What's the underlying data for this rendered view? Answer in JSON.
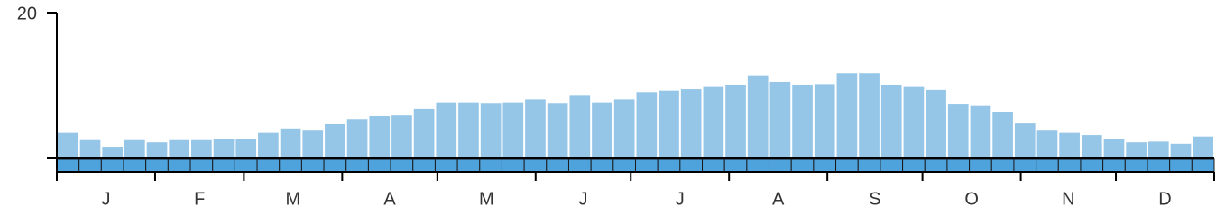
{
  "chart_data": {
    "type": "bar",
    "months": [
      "J",
      "F",
      "M",
      "A",
      "M",
      "J",
      "J",
      "A",
      "S",
      "O",
      "N",
      "D"
    ],
    "values": [
      3.5,
      2.5,
      1.6,
      2.5,
      2.2,
      2.5,
      2.5,
      2.6,
      2.6,
      3.5,
      4.1,
      3.8,
      4.7,
      5.4,
      5.8,
      5.9,
      6.8,
      7.7,
      7.7,
      7.5,
      7.7,
      8.1,
      7.5,
      8.6,
      7.7,
      8.1,
      9.1,
      9.3,
      9.5,
      9.8,
      10.1,
      11.4,
      10.5,
      10.1,
      10.2,
      11.7,
      11.7,
      10.0,
      9.8,
      9.4,
      7.4,
      7.2,
      6.4,
      4.8,
      3.8,
      3.5,
      3.2,
      2.7,
      2.2,
      2.3,
      2.0,
      3.0
    ],
    "color": "#95c6e8",
    "ylim": [
      0,
      20
    ],
    "yticks": [
      20
    ]
  }
}
